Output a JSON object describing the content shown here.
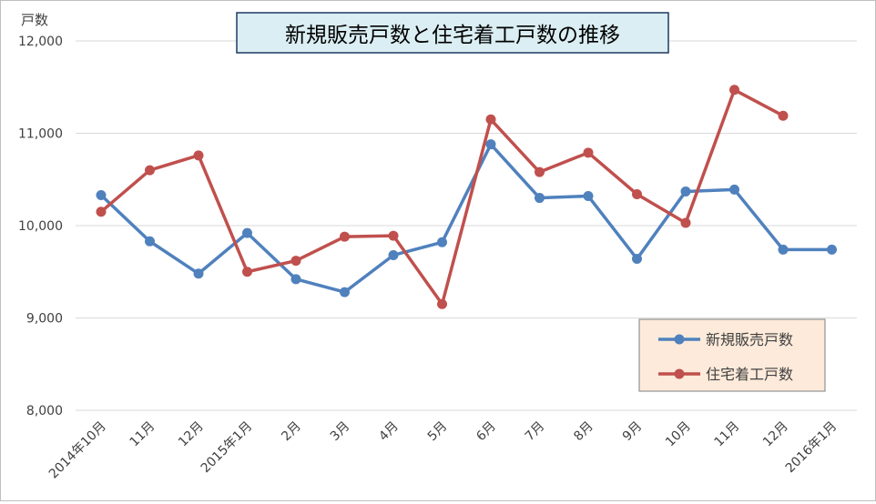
{
  "chart_data": {
    "type": "line",
    "title": "新規販売戸数と住宅着工戸数の推移",
    "ylabel": "戸数",
    "xlabel": "",
    "ylim": [
      8000,
      12000
    ],
    "yticks": [
      8000,
      9000,
      10000,
      11000,
      12000
    ],
    "ytick_labels": [
      "8,000",
      "9,000",
      "10,000",
      "11,000",
      "12,000"
    ],
    "categories": [
      "2014年10月",
      "11月",
      "12月",
      "2015年1月",
      "2月",
      "3月",
      "4月",
      "5月",
      "6月",
      "7月",
      "8月",
      "9月",
      "10月",
      "11月",
      "12月",
      "2016年1月"
    ],
    "grid": true,
    "legend_position": "bottom-right",
    "series": [
      {
        "name": "新規販売戸数",
        "color": "#4F81BD",
        "values": [
          10330,
          9830,
          9480,
          9920,
          9420,
          9280,
          9680,
          9820,
          10880,
          10300,
          10320,
          9640,
          10370,
          10390,
          9740,
          9740
        ]
      },
      {
        "name": "住宅着工戸数",
        "color": "#C0504D",
        "values": [
          10150,
          10600,
          10760,
          9500,
          9620,
          9880,
          9890,
          9150,
          11150,
          10580,
          10790,
          10340,
          10030,
          11470,
          11190,
          null
        ]
      }
    ],
    "colors": {
      "title_bg": "#DAEEF3",
      "title_border": "#1F3864",
      "legend_bg": "#FDEADA",
      "legend_border": "#7F7F7F",
      "grid": "#D9D9D9",
      "text": "#404040"
    }
  }
}
